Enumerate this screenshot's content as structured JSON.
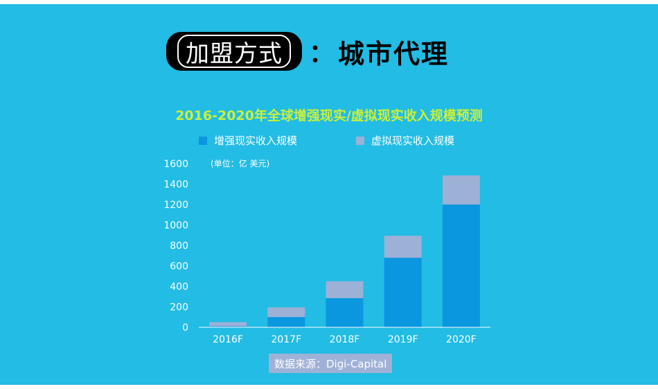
{
  "headline": {
    "badge_text": "加盟方式",
    "colon": "：",
    "right_text": "城市代理"
  },
  "colors": {
    "background": "#22bce4",
    "title": "#c9f03a",
    "ar_series": "#0b96e0",
    "vr_series": "#9db0d6",
    "axis": "#ffffff",
    "badge": "#000000"
  },
  "chart_data": {
    "type": "bar",
    "stacked": true,
    "title": "2016-2020年全球增强现实/虚拟现实收入规模预测",
    "unit_label": "(单位：亿 美元)",
    "categories": [
      "2016F",
      "2017F",
      "2018F",
      "2019F",
      "2020F"
    ],
    "series": [
      {
        "name": "增强现实收入规模",
        "color": "#0b96e0",
        "values": [
          10,
          100,
          285,
          680,
          1200
        ]
      },
      {
        "name": "虚拟现实收入规模",
        "color": "#9db0d6",
        "values": [
          40,
          95,
          165,
          215,
          285
        ]
      }
    ],
    "ylim": [
      0,
      1600
    ],
    "yticks": [
      0,
      200,
      400,
      600,
      800,
      1000,
      1200,
      1400,
      1600
    ],
    "grid": false,
    "legend_position": "top"
  },
  "source": {
    "text": "数据来源：Digi-Capital"
  }
}
